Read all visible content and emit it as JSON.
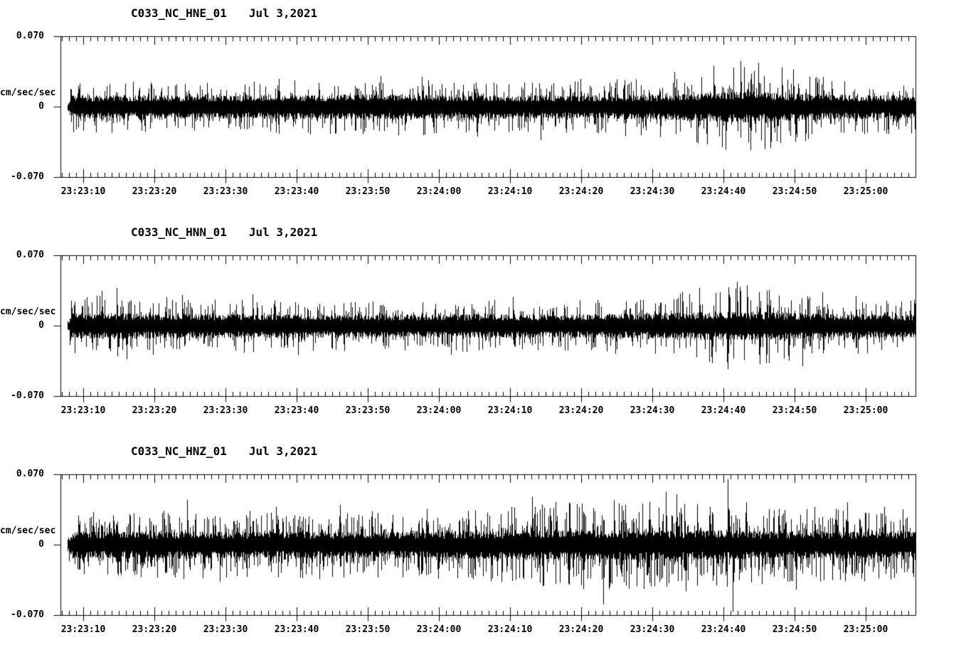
{
  "page": {
    "background_color": "#ffffff",
    "trace_color": "#000000"
  },
  "chart_data": [
    {
      "type": "line",
      "kind": "seismogram-waveform",
      "station": "C033_NC_HNE_01",
      "date": "Jul 3,2021",
      "ylabel": "cm/sec/sec",
      "yticks": [
        "0.070",
        "0",
        "-0.070"
      ],
      "ylim": [
        -0.07,
        0.07
      ],
      "xtick_labels": [
        "23:23:10",
        "23:23:20",
        "23:23:30",
        "23:23:40",
        "23:23:50",
        "23:24:00",
        "23:24:10",
        "23:24:20",
        "23:24:30",
        "23:24:40",
        "23:24:50",
        "23:25:00"
      ],
      "xtick_interval_sec": 10,
      "minor_tick_sec": 1,
      "x_range_sec_rel_first_tick": [
        -3.2,
        117
      ],
      "seed": 101,
      "spike_prob": 0.26,
      "envelope_t_core_peak": [
        [
          -3,
          0.01,
          0.026
        ],
        [
          20,
          0.0098,
          0.025
        ],
        [
          38,
          0.0105,
          0.029
        ],
        [
          44,
          0.0105,
          0.03
        ],
        [
          52,
          0.01,
          0.026
        ],
        [
          60,
          0.0098,
          0.025
        ],
        [
          70,
          0.0098,
          0.026
        ],
        [
          80,
          0.0105,
          0.029
        ],
        [
          85,
          0.0112,
          0.034
        ],
        [
          89,
          0.0122,
          0.04
        ],
        [
          93,
          0.0128,
          0.045
        ],
        [
          97,
          0.0122,
          0.042
        ],
        [
          101,
          0.011,
          0.034
        ],
        [
          106,
          0.0102,
          0.028
        ],
        [
          112,
          0.01,
          0.027
        ],
        [
          117,
          0.01,
          0.027
        ]
      ],
      "spikes_t_amp": [
        [
          27.5,
          0.028
        ],
        [
          41.8,
          0.031
        ],
        [
          47.6,
          0.03
        ],
        [
          55.4,
          -0.0295
        ],
        [
          64.3,
          -0.033
        ],
        [
          69.9,
          0.028
        ],
        [
          76.2,
          -0.029
        ],
        [
          83.1,
          0.035
        ],
        [
          86.4,
          -0.036
        ],
        [
          88.6,
          0.041
        ],
        [
          90.3,
          -0.0425
        ],
        [
          92.4,
          0.046
        ],
        [
          93.8,
          -0.043
        ],
        [
          94.9,
          0.044
        ],
        [
          96.6,
          -0.041
        ],
        [
          98.2,
          0.0395
        ],
        [
          99.8,
          0.0375
        ],
        [
          101.5,
          -0.034
        ],
        [
          104.0,
          0.03
        ]
      ]
    },
    {
      "type": "line",
      "kind": "seismogram-waveform",
      "station": "C033_NC_HNN_01",
      "date": "Jul 3,2021",
      "ylabel": "cm/sec/sec",
      "yticks": [
        "0.070",
        "0",
        "-0.070"
      ],
      "ylim": [
        -0.07,
        0.07
      ],
      "xtick_labels": [
        "23:23:10",
        "23:23:20",
        "23:23:30",
        "23:23:40",
        "23:23:50",
        "23:24:00",
        "23:24:10",
        "23:24:20",
        "23:24:30",
        "23:24:40",
        "23:24:50",
        "23:25:00"
      ],
      "xtick_interval_sec": 10,
      "minor_tick_sec": 1,
      "x_range_sec_rel_first_tick": [
        -3.2,
        117
      ],
      "seed": 202,
      "spike_prob": 0.26,
      "envelope_t_core_peak": [
        [
          -3,
          0.0102,
          0.027
        ],
        [
          2,
          0.0108,
          0.031
        ],
        [
          7,
          0.0108,
          0.03
        ],
        [
          14,
          0.0102,
          0.028
        ],
        [
          25,
          0.01,
          0.027
        ],
        [
          40,
          0.0098,
          0.025
        ],
        [
          55,
          0.01,
          0.026
        ],
        [
          68,
          0.0098,
          0.026
        ],
        [
          78,
          0.0102,
          0.028
        ],
        [
          85,
          0.0112,
          0.033
        ],
        [
          89,
          0.0122,
          0.039
        ],
        [
          92,
          0.0125,
          0.043
        ],
        [
          96,
          0.0118,
          0.038
        ],
        [
          100,
          0.011,
          0.033
        ],
        [
          105,
          0.0104,
          0.029
        ],
        [
          111,
          0.01,
          0.027
        ],
        [
          117,
          0.01,
          0.027
        ]
      ],
      "spikes_t_amp": [
        [
          2.6,
          0.035
        ],
        [
          4.7,
          0.038
        ],
        [
          6.1,
          -0.033
        ],
        [
          13.9,
          0.031
        ],
        [
          23.8,
          0.0315
        ],
        [
          30.2,
          -0.029
        ],
        [
          51.7,
          -0.0285
        ],
        [
          60.4,
          0.029
        ],
        [
          74.8,
          -0.028
        ],
        [
          84.2,
          0.034
        ],
        [
          86.6,
          0.038
        ],
        [
          88.4,
          -0.037
        ],
        [
          90.6,
          -0.043
        ],
        [
          91.9,
          0.044
        ],
        [
          93.3,
          0.0405
        ],
        [
          95.1,
          -0.038
        ],
        [
          96.4,
          0.036
        ],
        [
          99.2,
          -0.0345
        ],
        [
          101.1,
          -0.04
        ],
        [
          103.9,
          0.0335
        ],
        [
          108.6,
          0.03
        ]
      ]
    },
    {
      "type": "line",
      "kind": "seismogram-waveform",
      "station": "C033_NC_HNZ_01",
      "date": "Jul 3,2021",
      "ylabel": "cm/sec/sec",
      "yticks": [
        "0.070",
        "0",
        "-0.070"
      ],
      "ylim": [
        -0.07,
        0.07
      ],
      "xtick_labels": [
        "23:23:10",
        "23:23:20",
        "23:23:30",
        "23:23:40",
        "23:23:50",
        "23:24:00",
        "23:24:10",
        "23:24:20",
        "23:24:30",
        "23:24:40",
        "23:24:50",
        "23:25:00"
      ],
      "xtick_interval_sec": 10,
      "minor_tick_sec": 1,
      "x_range_sec_rel_first_tick": [
        -3.2,
        117
      ],
      "seed": 303,
      "spike_prob": 0.42,
      "envelope_t_core_peak": [
        [
          -3,
          0.0108,
          0.03
        ],
        [
          6,
          0.011,
          0.032
        ],
        [
          14,
          0.0114,
          0.034
        ],
        [
          24,
          0.011,
          0.032
        ],
        [
          34,
          0.011,
          0.033
        ],
        [
          44,
          0.011,
          0.032
        ],
        [
          54,
          0.0114,
          0.035
        ],
        [
          61,
          0.0118,
          0.039
        ],
        [
          67,
          0.012,
          0.042
        ],
        [
          73,
          0.0124,
          0.044
        ],
        [
          79,
          0.0124,
          0.046
        ],
        [
          84,
          0.012,
          0.042
        ],
        [
          89,
          0.0124,
          0.045
        ],
        [
          93,
          0.0118,
          0.04
        ],
        [
          99,
          0.0114,
          0.037
        ],
        [
          106,
          0.0114,
          0.037
        ],
        [
          112,
          0.0112,
          0.035
        ],
        [
          117,
          0.0112,
          0.035
        ]
      ],
      "spikes_t_amp": [
        [
          1.4,
          0.033
        ],
        [
          4.9,
          -0.03
        ],
        [
          8.1,
          -0.032
        ],
        [
          11.3,
          0.034
        ],
        [
          14.6,
          0.045
        ],
        [
          16.8,
          -0.033
        ],
        [
          19.2,
          -0.0365
        ],
        [
          23.4,
          0.034
        ],
        [
          27.1,
          0.038
        ],
        [
          30.8,
          -0.033
        ],
        [
          33.2,
          -0.034
        ],
        [
          36.1,
          0.04
        ],
        [
          40.6,
          0.0335
        ],
        [
          44.9,
          -0.032
        ],
        [
          48.3,
          0.036
        ],
        [
          52.6,
          -0.033
        ],
        [
          55.1,
          0.0345
        ],
        [
          57.3,
          -0.036
        ],
        [
          60.2,
          0.038
        ],
        [
          63.1,
          0.048
        ],
        [
          64.6,
          -0.041
        ],
        [
          66.4,
          0.043
        ],
        [
          68.2,
          -0.038
        ],
        [
          70.3,
          -0.044
        ],
        [
          73.1,
          -0.059
        ],
        [
          74.6,
          0.0445
        ],
        [
          76.2,
          0.04
        ],
        [
          77.8,
          -0.041
        ],
        [
          79.6,
          0.043
        ],
        [
          81.9,
          0.053
        ],
        [
          83.4,
          0.0505
        ],
        [
          84.7,
          -0.046
        ],
        [
          86.3,
          0.0405
        ],
        [
          88.1,
          0.038
        ],
        [
          90.6,
          0.0655
        ],
        [
          91.3,
          -0.0665
        ],
        [
          93.2,
          0.0425
        ],
        [
          95.4,
          -0.039
        ],
        [
          97.8,
          0.036
        ],
        [
          100.2,
          -0.0445
        ],
        [
          102.8,
          0.038
        ],
        [
          105.3,
          -0.035
        ],
        [
          107.4,
          0.0425
        ],
        [
          109.8,
          -0.036
        ],
        [
          112.6,
          0.038
        ],
        [
          115.2,
          0.0355
        ]
      ]
    }
  ]
}
